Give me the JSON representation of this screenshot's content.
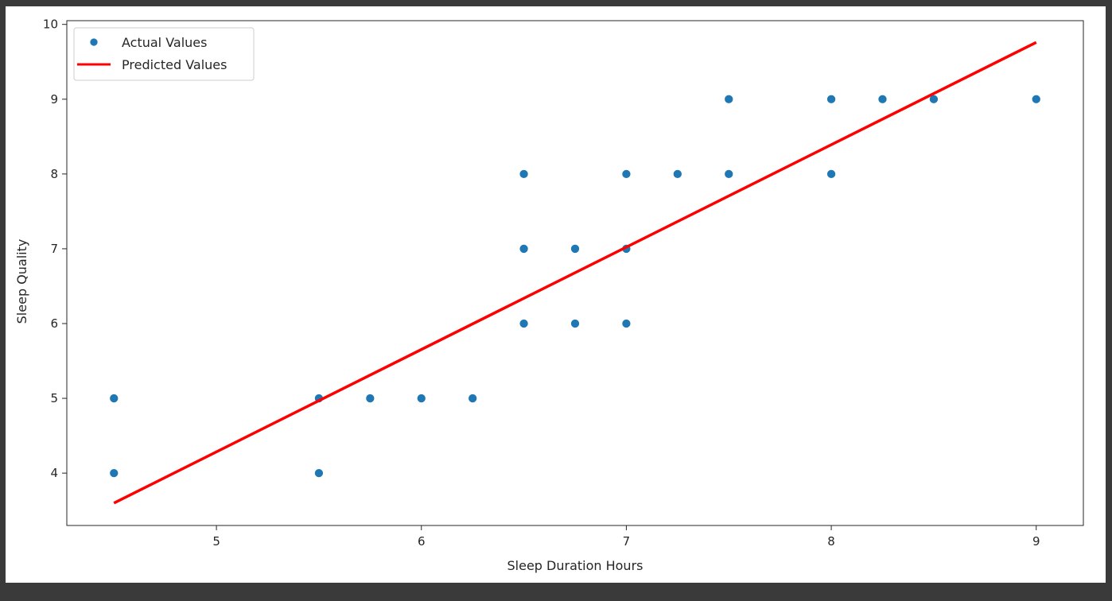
{
  "chart_data": {
    "type": "scatter",
    "title": "",
    "xlabel": "Sleep Duration Hours",
    "ylabel": "Sleep Quality",
    "xlim": [
      4.27,
      9.23
    ],
    "ylim": [
      3.3,
      10.05
    ],
    "xticks": [
      5,
      6,
      7,
      8,
      9
    ],
    "yticks": [
      4,
      5,
      6,
      7,
      8,
      9,
      10
    ],
    "grid": false,
    "legend": "top-left",
    "series": [
      {
        "name": "Actual Values",
        "kind": "scatter",
        "color": "#1f77b4",
        "points": [
          [
            4.5,
            5
          ],
          [
            4.5,
            4
          ],
          [
            5.5,
            5
          ],
          [
            5.5,
            4
          ],
          [
            5.75,
            5
          ],
          [
            6.0,
            5
          ],
          [
            6.25,
            5
          ],
          [
            6.5,
            8
          ],
          [
            6.5,
            7
          ],
          [
            6.5,
            6
          ],
          [
            6.75,
            7
          ],
          [
            6.75,
            6
          ],
          [
            7.0,
            8
          ],
          [
            7.0,
            7
          ],
          [
            7.0,
            6
          ],
          [
            7.25,
            8
          ],
          [
            7.5,
            9
          ],
          [
            7.5,
            8
          ],
          [
            8.0,
            9
          ],
          [
            8.0,
            8
          ],
          [
            8.25,
            9
          ],
          [
            8.5,
            9
          ],
          [
            9.0,
            9
          ]
        ]
      },
      {
        "name": "Predicted Values",
        "kind": "line",
        "color": "#ff0000",
        "points": [
          [
            4.5,
            3.6
          ],
          [
            9.0,
            9.76
          ]
        ]
      }
    ]
  }
}
